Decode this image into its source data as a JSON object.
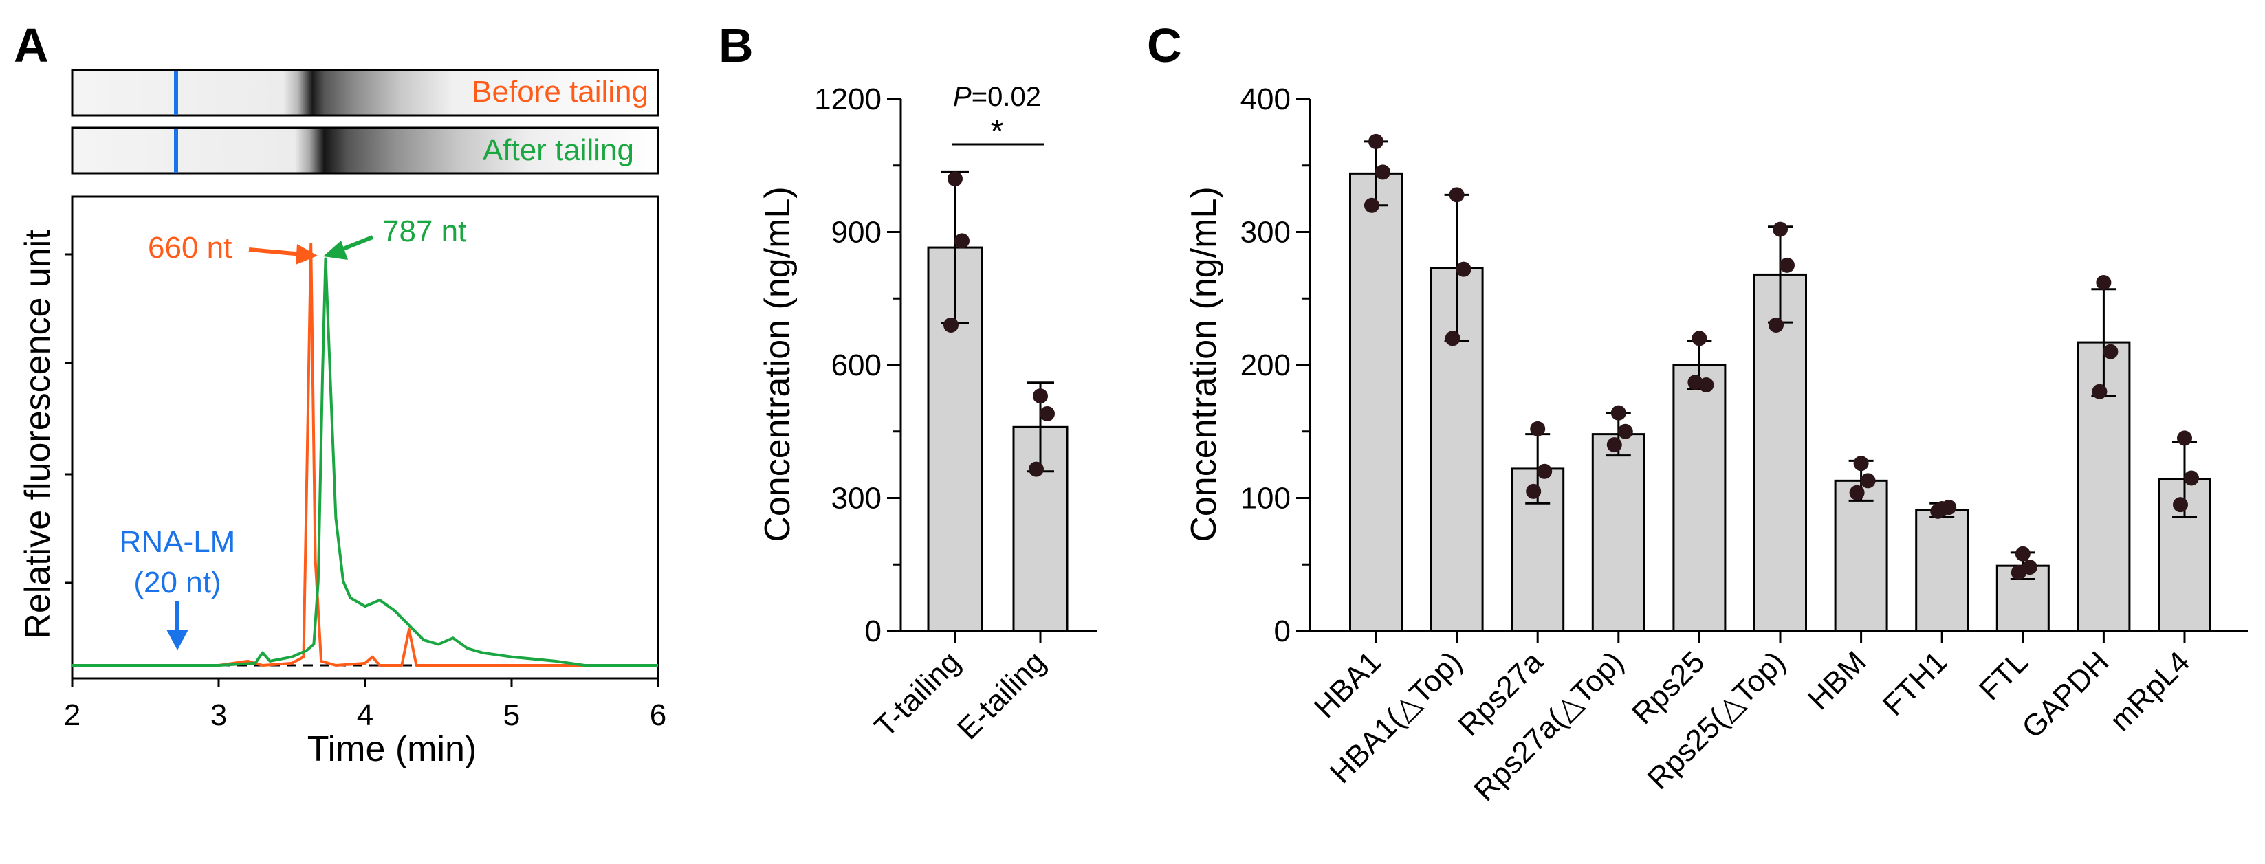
{
  "panel_labels": {
    "a": "A",
    "b": "B",
    "c": "C"
  },
  "colors": {
    "before": "#FF5C1A",
    "after": "#1AA640",
    "marker": "#1A73E8",
    "bar_fill": "#D3D3D3",
    "dot": "#2B1518",
    "axis": "#000000"
  },
  "chart_data": [
    {
      "id": "A",
      "type": "line",
      "ylabel": "Relative fluorescence unit",
      "xlabel": "Time (min)",
      "xlim": [
        2,
        6
      ],
      "xticks": [
        "2",
        "3",
        "4",
        "5",
        "6"
      ],
      "gel_lanes": [
        {
          "label": "Before tailing",
          "band_min": 3.63,
          "marker_min": 2.7
        },
        {
          "label": "After tailing",
          "band_min": 3.73,
          "marker_min": 2.7
        }
      ],
      "series": [
        {
          "name": "Before tailing",
          "x": [
            2.0,
            3.0,
            3.2,
            3.3,
            3.5,
            3.58,
            3.61,
            3.63,
            3.66,
            3.7,
            3.8,
            4.0,
            4.05,
            4.1,
            4.25,
            4.3,
            4.35,
            4.5,
            5.0,
            6.0
          ],
          "y": [
            0.0,
            0.0,
            0.01,
            0.0,
            0.005,
            0.02,
            0.6,
            1.0,
            0.25,
            0.01,
            0.0,
            0.005,
            0.02,
            0.0,
            0.0,
            0.085,
            0.0,
            0.0,
            0.0,
            0.0
          ]
        },
        {
          "name": "After tailing",
          "x": [
            2.0,
            3.0,
            3.25,
            3.3,
            3.35,
            3.5,
            3.6,
            3.65,
            3.68,
            3.71,
            3.73,
            3.76,
            3.8,
            3.85,
            3.9,
            4.0,
            4.1,
            4.2,
            4.4,
            4.5,
            4.6,
            4.7,
            4.8,
            5.0,
            5.3,
            5.5,
            6.0
          ],
          "y": [
            0.0,
            0.0,
            0.005,
            0.03,
            0.01,
            0.02,
            0.035,
            0.05,
            0.2,
            0.7,
            0.965,
            0.7,
            0.35,
            0.2,
            0.16,
            0.14,
            0.155,
            0.13,
            0.06,
            0.05,
            0.065,
            0.04,
            0.03,
            0.02,
            0.01,
            0.0,
            0.0
          ]
        }
      ],
      "annotations": [
        {
          "text": "660 nt",
          "color": "before"
        },
        {
          "text": "787 nt",
          "color": "after"
        },
        {
          "text": "RNA-LM",
          "text2": "(20 nt)",
          "color": "marker",
          "x": 2.73
        }
      ]
    },
    {
      "id": "B",
      "type": "bar",
      "ylabel": "Concentration (ng/mL)",
      "categories": [
        "T-tailing",
        "E-tailing"
      ],
      "values": [
        865,
        460
      ],
      "errors": [
        170,
        100
      ],
      "points": [
        [
          1020,
          880,
          690
        ],
        [
          530,
          490,
          365
        ]
      ],
      "ylim": [
        0,
        1200
      ],
      "yticks": [
        0,
        300,
        600,
        900,
        1200
      ],
      "significance": {
        "p_label": "P",
        "p_text": "=0.02",
        "star": "*"
      }
    },
    {
      "id": "C",
      "type": "bar",
      "ylabel": "Concentration (ng/mL)",
      "categories": [
        "HBA1",
        "HBA1(△Top)",
        "Rps27a",
        "Rps27a(△Top)",
        "Rps25",
        "Rps25(△Top)",
        "HBM",
        "FTH1",
        "FTL",
        "GAPDH",
        "mRpL4"
      ],
      "values": [
        344,
        273,
        122,
        148,
        200,
        268,
        113,
        91,
        49,
        217,
        114
      ],
      "errors": [
        24,
        55,
        26,
        16,
        18,
        36,
        15,
        5,
        10,
        40,
        28
      ],
      "points": [
        [
          368,
          345,
          320
        ],
        [
          328,
          272,
          220
        ],
        [
          152,
          120,
          105
        ],
        [
          164,
          150,
          140
        ],
        [
          220,
          185,
          187
        ],
        [
          302,
          275,
          230
        ],
        [
          126,
          113,
          104
        ],
        [
          92,
          93,
          90
        ],
        [
          58,
          48,
          44
        ],
        [
          262,
          210,
          180
        ],
        [
          145,
          115,
          95
        ]
      ],
      "ylim": [
        0,
        400
      ],
      "yticks": [
        0,
        100,
        200,
        300,
        400
      ]
    }
  ]
}
